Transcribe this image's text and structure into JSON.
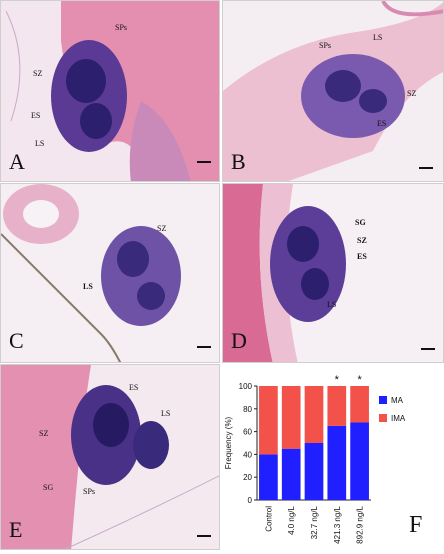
{
  "panels": [
    {
      "id": "A",
      "label": "A",
      "annotations": [
        "SPs",
        "SZ",
        "ES",
        "LS"
      ]
    },
    {
      "id": "B",
      "label": "B",
      "annotations": [
        "SPs",
        "LS",
        "SZ",
        "ES"
      ]
    },
    {
      "id": "C",
      "label": "C",
      "annotations": [
        "SZ",
        "LS"
      ]
    },
    {
      "id": "D",
      "label": "D",
      "annotations": [
        "SG",
        "SZ",
        "ES",
        "LS"
      ]
    },
    {
      "id": "E",
      "label": "E",
      "annotations": [
        "ES",
        "SZ",
        "LS",
        "SG",
        "SPs"
      ]
    },
    {
      "id": "F",
      "label": "F"
    }
  ],
  "colors": {
    "MA": "#1f1fff",
    "IMA": "#f2524a",
    "tissue_pink": "#e9a6bf",
    "tissue_purple": "#3b2a78"
  },
  "chart_data": {
    "type": "bar",
    "stacked": true,
    "categories": [
      "Control",
      "4.0 ng/L",
      "32.7 ng/L",
      "421.3 ng/L",
      "892.9 ng/L"
    ],
    "series": [
      {
        "name": "MA",
        "values": [
          40,
          45,
          50,
          65,
          68
        ]
      },
      {
        "name": "IMA",
        "values": [
          60,
          55,
          50,
          35,
          32
        ]
      }
    ],
    "significance": [
      "",
      "",
      "",
      "*",
      "*"
    ],
    "ylabel": "Frequency (%)",
    "ylim": [
      0,
      100
    ],
    "yticks": [
      0,
      20,
      40,
      60,
      80,
      100
    ],
    "legend": "right"
  }
}
